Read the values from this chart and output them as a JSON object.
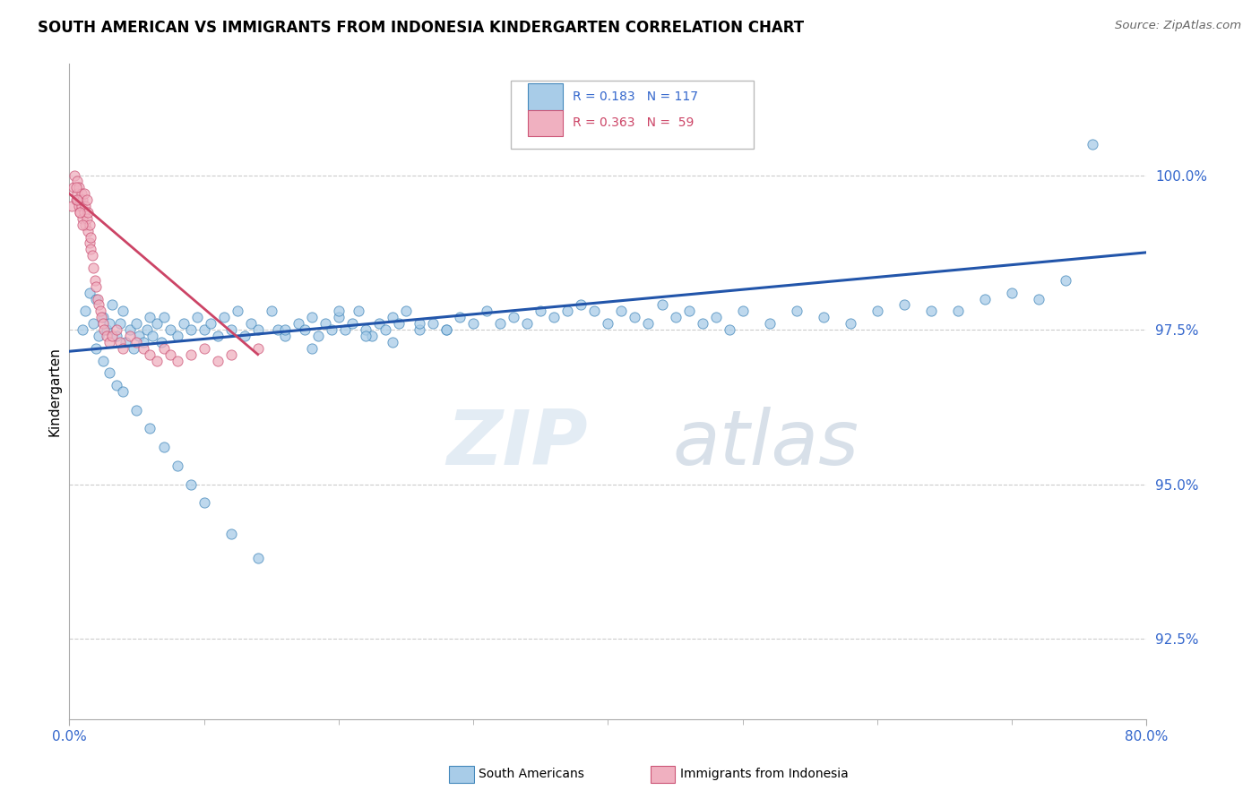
{
  "title": "SOUTH AMERICAN VS IMMIGRANTS FROM INDONESIA KINDERGARTEN CORRELATION CHART",
  "source": "Source: ZipAtlas.com",
  "ylabel": "Kindergarten",
  "ytick_values": [
    92.5,
    95.0,
    97.5,
    100.0
  ],
  "xmin": 0.0,
  "xmax": 80.0,
  "ymin": 91.2,
  "ymax": 101.8,
  "legend_blue_r": "R = 0.183",
  "legend_blue_n": "N = 117",
  "legend_pink_r": "R = 0.363",
  "legend_pink_n": "N =  59",
  "blue_label": "South Americans",
  "pink_label": "Immigrants from Indonesia",
  "blue_color": "#a8cce8",
  "blue_edge": "#4488bb",
  "pink_color": "#f0b0c0",
  "pink_edge": "#cc5577",
  "trend_blue_color": "#2255aa",
  "trend_pink_color": "#cc4466",
  "watermark_zip": "ZIP",
  "watermark_atlas": "atlas",
  "blue_scatter_x": [
    1.0,
    1.2,
    1.5,
    1.8,
    2.0,
    2.2,
    2.5,
    2.8,
    3.0,
    3.2,
    3.5,
    3.8,
    4.0,
    4.2,
    4.5,
    4.8,
    5.0,
    5.2,
    5.5,
    5.8,
    6.0,
    6.2,
    6.5,
    6.8,
    7.0,
    7.5,
    8.0,
    8.5,
    9.0,
    9.5,
    10.0,
    10.5,
    11.0,
    11.5,
    12.0,
    12.5,
    13.0,
    13.5,
    14.0,
    15.0,
    15.5,
    16.0,
    17.0,
    17.5,
    18.0,
    18.5,
    19.0,
    19.5,
    20.0,
    20.5,
    21.0,
    21.5,
    22.0,
    22.5,
    23.0,
    23.5,
    24.0,
    24.5,
    25.0,
    26.0,
    27.0,
    28.0,
    29.0,
    30.0,
    31.0,
    32.0,
    33.0,
    34.0,
    35.0,
    36.0,
    37.0,
    38.0,
    39.0,
    40.0,
    41.0,
    42.0,
    43.0,
    44.0,
    45.0,
    46.0,
    47.0,
    48.0,
    49.0,
    50.0,
    52.0,
    54.0,
    56.0,
    58.0,
    60.0,
    62.0,
    64.0,
    66.0,
    68.0,
    70.0,
    72.0,
    74.0,
    76.0,
    2.0,
    2.5,
    3.0,
    3.5,
    4.0,
    5.0,
    6.0,
    7.0,
    8.0,
    9.0,
    10.0,
    12.0,
    14.0,
    16.0,
    18.0,
    20.0,
    22.0,
    24.0,
    26.0,
    28.0
  ],
  "blue_scatter_y": [
    97.5,
    97.8,
    98.1,
    97.6,
    98.0,
    97.4,
    97.7,
    97.5,
    97.6,
    97.9,
    97.4,
    97.6,
    97.8,
    97.3,
    97.5,
    97.2,
    97.6,
    97.4,
    97.3,
    97.5,
    97.7,
    97.4,
    97.6,
    97.3,
    97.7,
    97.5,
    97.4,
    97.6,
    97.5,
    97.7,
    97.5,
    97.6,
    97.4,
    97.7,
    97.5,
    97.8,
    97.4,
    97.6,
    97.5,
    97.8,
    97.5,
    97.4,
    97.6,
    97.5,
    97.7,
    97.4,
    97.6,
    97.5,
    97.7,
    97.5,
    97.6,
    97.8,
    97.5,
    97.4,
    97.6,
    97.5,
    97.7,
    97.6,
    97.8,
    97.5,
    97.6,
    97.5,
    97.7,
    97.6,
    97.8,
    97.6,
    97.7,
    97.6,
    97.8,
    97.7,
    97.8,
    97.9,
    97.8,
    97.6,
    97.8,
    97.7,
    97.6,
    97.9,
    97.7,
    97.8,
    97.6,
    97.7,
    97.5,
    97.8,
    97.6,
    97.8,
    97.7,
    97.6,
    97.8,
    97.9,
    97.8,
    97.8,
    98.0,
    98.1,
    98.0,
    98.3,
    100.5,
    97.2,
    97.0,
    96.8,
    96.6,
    96.5,
    96.2,
    95.9,
    95.6,
    95.3,
    95.0,
    94.7,
    94.2,
    93.8,
    97.5,
    97.2,
    97.8,
    97.4,
    97.3,
    97.6,
    97.5
  ],
  "pink_scatter_x": [
    0.2,
    0.3,
    0.4,
    0.5,
    0.6,
    0.6,
    0.7,
    0.7,
    0.8,
    0.8,
    0.9,
    0.9,
    1.0,
    1.0,
    1.1,
    1.1,
    1.2,
    1.2,
    1.3,
    1.3,
    1.4,
    1.4,
    1.5,
    1.5,
    1.6,
    1.6,
    1.7,
    1.8,
    1.9,
    2.0,
    2.1,
    2.2,
    2.3,
    2.4,
    2.5,
    2.6,
    2.8,
    3.0,
    3.2,
    3.5,
    3.8,
    4.0,
    4.5,
    5.0,
    5.5,
    6.0,
    6.5,
    7.0,
    7.5,
    8.0,
    9.0,
    10.0,
    11.0,
    12.0,
    14.0,
    0.5,
    0.6,
    0.8,
    1.0
  ],
  "pink_scatter_y": [
    99.5,
    99.8,
    100.0,
    99.6,
    99.9,
    99.7,
    99.5,
    99.8,
    99.6,
    99.4,
    99.7,
    99.5,
    99.3,
    99.6,
    99.4,
    99.7,
    99.2,
    99.5,
    99.3,
    99.6,
    99.1,
    99.4,
    98.9,
    99.2,
    98.8,
    99.0,
    98.7,
    98.5,
    98.3,
    98.2,
    98.0,
    97.9,
    97.8,
    97.7,
    97.6,
    97.5,
    97.4,
    97.3,
    97.4,
    97.5,
    97.3,
    97.2,
    97.4,
    97.3,
    97.2,
    97.1,
    97.0,
    97.2,
    97.1,
    97.0,
    97.1,
    97.2,
    97.0,
    97.1,
    97.2,
    99.8,
    99.6,
    99.4,
    99.2
  ],
  "blue_trend_x": [
    0.0,
    80.0
  ],
  "blue_trend_y": [
    97.15,
    98.75
  ],
  "pink_trend_x": [
    0.0,
    14.0
  ],
  "pink_trend_y": [
    99.7,
    97.1
  ]
}
